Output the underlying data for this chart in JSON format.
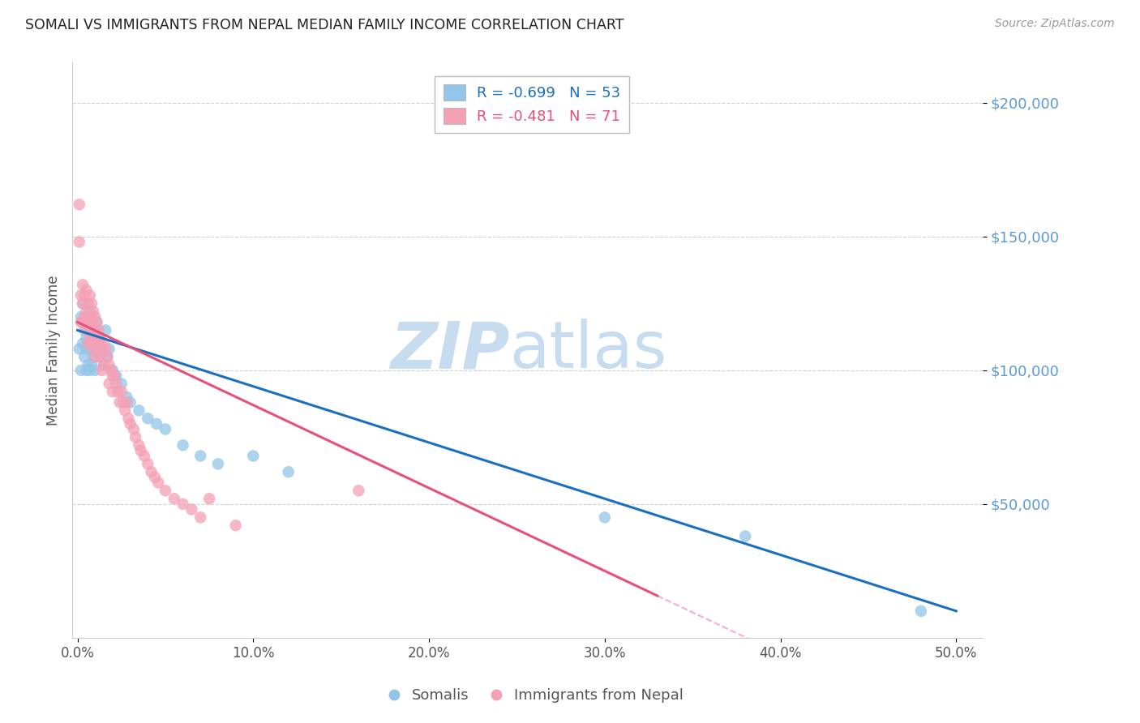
{
  "title": "SOMALI VS IMMIGRANTS FROM NEPAL MEDIAN FAMILY INCOME CORRELATION CHART",
  "source": "Source: ZipAtlas.com",
  "ylabel": "Median Family Income",
  "ytick_values": [
    50000,
    100000,
    150000,
    200000
  ],
  "ytick_labels": [
    "$50,000",
    "$100,000",
    "$150,000",
    "$200,000"
  ],
  "ymin": 0,
  "ymax": 215000,
  "xmin": -0.003,
  "xmax": 0.515,
  "somali_color": "#92C5E8",
  "nepal_color": "#F4A0B5",
  "somali_line_color": "#1A6FBF",
  "nepal_line_color": "#E8507A",
  "watermark_color": "#C8DCEF",
  "title_color": "#222222",
  "axis_label_color": "#555555",
  "ytick_color": "#5B9BD5",
  "xtick_color": "#555555",
  "grid_color": "#CCCCCC",
  "background_color": "#FFFFFF",
  "somali_intercept": 115000,
  "somali_slope": -210000,
  "nepal_intercept": 118000,
  "nepal_slope": -310000,
  "somali_x": [
    0.001,
    0.002,
    0.002,
    0.003,
    0.003,
    0.003,
    0.004,
    0.004,
    0.005,
    0.005,
    0.005,
    0.005,
    0.006,
    0.006,
    0.006,
    0.007,
    0.007,
    0.007,
    0.007,
    0.008,
    0.008,
    0.008,
    0.009,
    0.009,
    0.01,
    0.01,
    0.01,
    0.011,
    0.011,
    0.012,
    0.013,
    0.014,
    0.015,
    0.016,
    0.017,
    0.018,
    0.02,
    0.022,
    0.025,
    0.028,
    0.03,
    0.035,
    0.04,
    0.045,
    0.05,
    0.06,
    0.07,
    0.08,
    0.1,
    0.12,
    0.3,
    0.38,
    0.48
  ],
  "somali_y": [
    108000,
    120000,
    100000,
    125000,
    118000,
    110000,
    115000,
    105000,
    120000,
    112000,
    108000,
    100000,
    118000,
    110000,
    102000,
    122000,
    115000,
    108000,
    100000,
    118000,
    110000,
    102000,
    112000,
    105000,
    115000,
    108000,
    100000,
    118000,
    108000,
    112000,
    105000,
    108000,
    102000,
    115000,
    105000,
    108000,
    100000,
    98000,
    95000,
    90000,
    88000,
    85000,
    82000,
    80000,
    78000,
    72000,
    68000,
    65000,
    68000,
    62000,
    45000,
    38000,
    10000
  ],
  "nepal_x": [
    0.001,
    0.001,
    0.002,
    0.002,
    0.003,
    0.003,
    0.003,
    0.004,
    0.004,
    0.005,
    0.005,
    0.005,
    0.006,
    0.006,
    0.006,
    0.007,
    0.007,
    0.007,
    0.008,
    0.008,
    0.008,
    0.009,
    0.009,
    0.009,
    0.01,
    0.01,
    0.01,
    0.011,
    0.011,
    0.012,
    0.012,
    0.013,
    0.013,
    0.014,
    0.014,
    0.015,
    0.015,
    0.016,
    0.017,
    0.018,
    0.018,
    0.019,
    0.02,
    0.02,
    0.021,
    0.022,
    0.023,
    0.024,
    0.025,
    0.026,
    0.027,
    0.028,
    0.029,
    0.03,
    0.032,
    0.033,
    0.035,
    0.036,
    0.038,
    0.04,
    0.042,
    0.044,
    0.046,
    0.05,
    0.055,
    0.06,
    0.065,
    0.07,
    0.075,
    0.09,
    0.16
  ],
  "nepal_y": [
    162000,
    148000,
    128000,
    118000,
    132000,
    125000,
    118000,
    128000,
    120000,
    130000,
    122000,
    115000,
    125000,
    118000,
    110000,
    128000,
    120000,
    112000,
    125000,
    118000,
    110000,
    122000,
    115000,
    108000,
    120000,
    112000,
    105000,
    118000,
    110000,
    115000,
    108000,
    112000,
    105000,
    108000,
    100000,
    110000,
    102000,
    108000,
    105000,
    102000,
    95000,
    100000,
    98000,
    92000,
    98000,
    95000,
    92000,
    88000,
    92000,
    88000,
    85000,
    88000,
    82000,
    80000,
    78000,
    75000,
    72000,
    70000,
    68000,
    65000,
    62000,
    60000,
    58000,
    55000,
    52000,
    50000,
    48000,
    45000,
    52000,
    42000,
    55000
  ]
}
